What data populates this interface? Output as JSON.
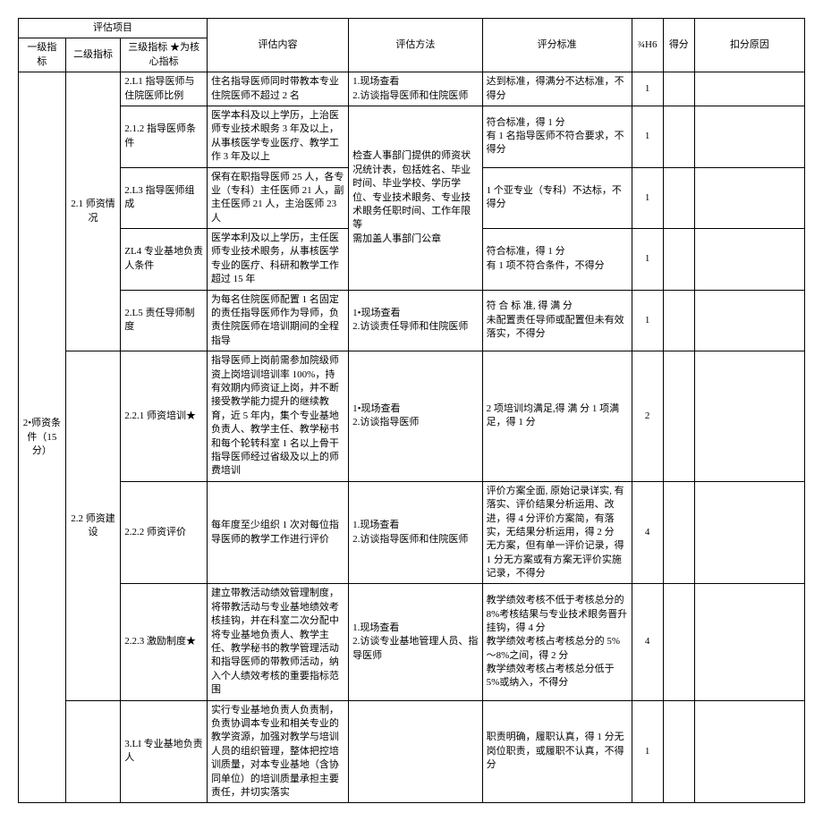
{
  "headers": {
    "group": "评估项目",
    "l1": "一级指标",
    "l2": "二级指标",
    "l3": "三级指标\n★为核心指标",
    "content": "评估内容",
    "method": "评估方法",
    "standard": "评分标准",
    "h6": "¾H6",
    "score": "得分",
    "reason": "扣分原因"
  },
  "l1_group": "2•师资条件（15分）",
  "l2_1": "2.1 师资情况",
  "l2_2": "2.2 师资建设",
  "rows": [
    {
      "l3": "2.L1 指导医师与住院医师比例",
      "content": "住名指导医师同时带教本专业住院医师不超过 2 名",
      "method": "1.现场查看\n2.访谈指导医师和住院医师",
      "standard": "达到标准，得满分不达标准，不得分",
      "h6": "1"
    },
    {
      "l3": "2.1.2 指导医师条件",
      "content": "医学本科及以上学历，上治医师专业技术眼务 3 年及以上，从事核医学专业医疗、教学工作 3 年及以上",
      "method_merge_start": true,
      "method": "检查人事部门提供的师资状况统计表，包括姓名、毕业时间、毕业学校、学历学位、专业技术眼务、专业技术眼务任职时间、工作年限等\n需加盖人事部门公章",
      "standard": "符合标准，得 1 分\n有 1 名指导医师不符合要求，不得分",
      "h6": "1"
    },
    {
      "l3": "2.L3 指导医师组成",
      "content": "保有在职指导医师 25 人，各专业（专科）主任医师 21 人，副主任医师 21 人，主治医师 23 人",
      "standard": "1 个亚专业（专科）不达标，不得分",
      "h6": "1"
    },
    {
      "l3": "ZL4 专业基地负责人条件",
      "content": "医学本利及以上学历，主任医师专业技术眼务，从事核医学专业的医疗、科研和教学工作超过 15 年",
      "standard": "符合标准，得 1 分\n有 1 项不符合条件，不得分",
      "h6": "1"
    },
    {
      "l3": "2.L5 责任导师制度",
      "content": "为每名住院医师配置 1 名固定的责任指导医师作为导师，负责住院医师在培训期间的全程指导",
      "method": "1•现场查看\n2.访谈责任导师和住院医师",
      "standard": "符 合 标 准, 得 满 分\n未配置责任导师或配置但未有效落实，不得分",
      "h6": "1"
    },
    {
      "l3": "2.2.1 师资培训★",
      "content": "指导医师上岗前需参加院级师资上岗培训培训率 100%，持有效期内师资证上岗，并不断接受教学能力提升的继续教育，近 5 年内，集个专业基地负责人、教学主任、教学秘书和每个轮转科室 1 名以上骨干指导医师经过省级及以上的师费培训",
      "method": "1•现场查看\n2.访谈指导医师",
      "standard": "2 项培训均满足,得 满 分 1 项满足，得 1 分",
      "h6": "2"
    },
    {
      "l3": "2.2.2 师资评价",
      "content": "每年度至少组织 1 次对每位指导医师的教学工作进行评价",
      "method": "1.现场查看\n2.访谈指导医师和住院医师",
      "standard": "评价方案全面, 原始记录详实, 有落实、评价结果分析运用、改进，得 4 分评价方案简，有落实，无结果分析运用，得 2 分\n无方案，但有单一评价记录，得 1 分无方案或有方案无评价实施记录，不得分",
      "h6": "4"
    },
    {
      "l3": "2.2.3 激励制度★",
      "content": "建立带教活动绩效管理制度，将带教活动与专业基地绩效考核挂钩，并在科室二次分配中将专业基地负责人、教学主任、教学秘书的教学管理活动和指导医师的带教师活动，纳入个人绩效考核的重要指标范围",
      "method": "1.现场查看\n2.访谈专业基地管理人员、指导医师",
      "standard": "教学绩效考核不低于考核总分的 8%考核结果与专业技术眼务晋升挂钩，得 4 分\n教学绩效考核占考核总分的 5%～8%之间，得 2 分\n教学绩效考核占考核总分低于 5%或纳入，不得分",
      "h6": "4"
    },
    {
      "l3": "3.LI 专业基地负责人",
      "content": "实行专业基地负责人负责制，负责协调本专业和相关专业的教学资源，加强对教学与培训人员的组织管理，整体把控培训质量，对本专业基地（含协同单位）的培训质量承担主要责任，并切实落实",
      "method": "",
      "standard": "职责明确，履职认真，得 1 分无岗位职责，或履职不认真，不得分",
      "h6": "1"
    }
  ]
}
